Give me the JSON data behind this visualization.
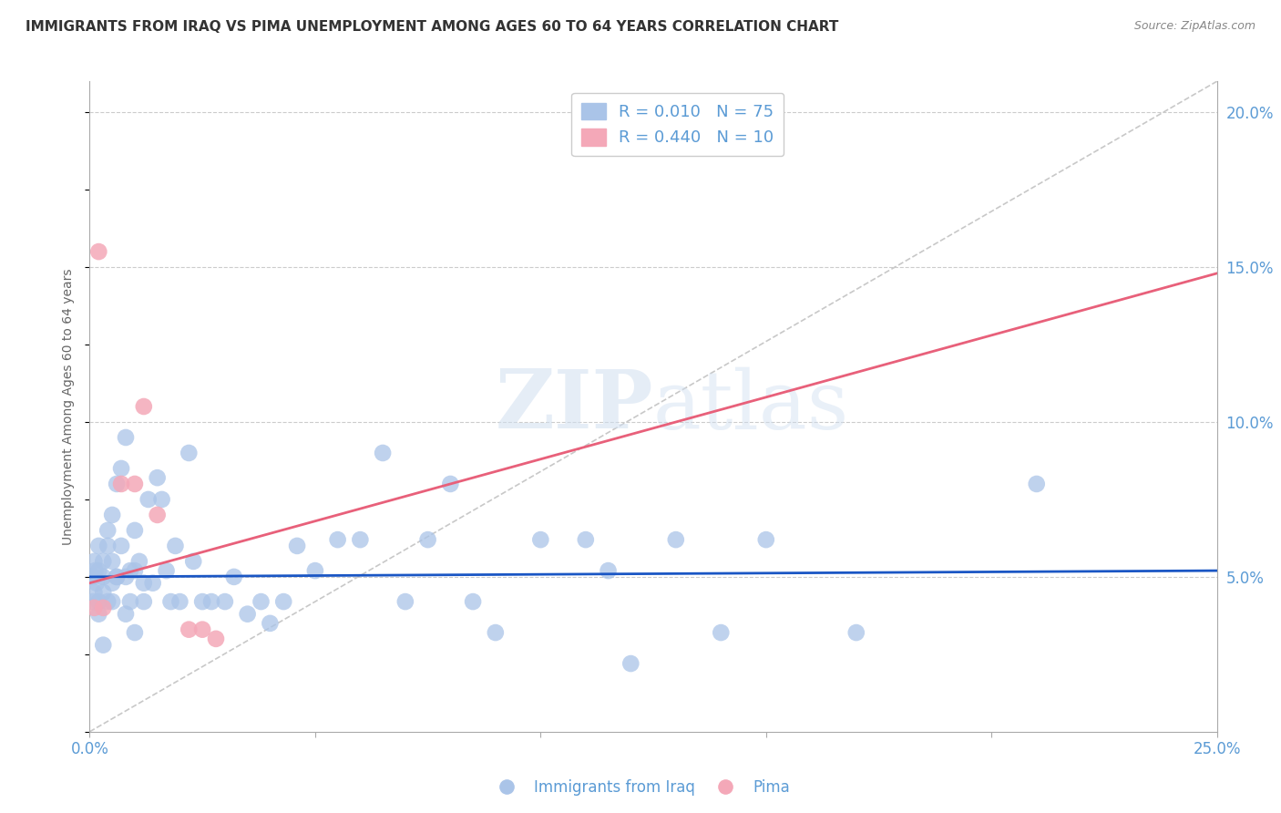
{
  "title": "IMMIGRANTS FROM IRAQ VS PIMA UNEMPLOYMENT AMONG AGES 60 TO 64 YEARS CORRELATION CHART",
  "source": "Source: ZipAtlas.com",
  "ylabel": "Unemployment Among Ages 60 to 64 years",
  "xlim": [
    0.0,
    0.25
  ],
  "ylim": [
    0.0,
    0.21
  ],
  "xticks": [
    0.0,
    0.05,
    0.1,
    0.15,
    0.2,
    0.25
  ],
  "xtick_labels": [
    "0.0%",
    "",
    "",
    "",
    "",
    "25.0%"
  ],
  "yticks_right": [
    0.0,
    0.05,
    0.1,
    0.15,
    0.2
  ],
  "ytick_labels_right": [
    "",
    "5.0%",
    "10.0%",
    "15.0%",
    "20.0%"
  ],
  "grid_color": "#cccccc",
  "background_color": "#ffffff",
  "axis_label_color": "#5b9bd5",
  "watermark_text": "ZIPatlas",
  "legend_r_blue": "0.010",
  "legend_n_blue": "75",
  "legend_r_pink": "0.440",
  "legend_n_pink": "10",
  "blue_scatter_x": [
    0.0005,
    0.001,
    0.001,
    0.001,
    0.0015,
    0.002,
    0.002,
    0.002,
    0.003,
    0.003,
    0.003,
    0.004,
    0.004,
    0.005,
    0.005,
    0.005,
    0.006,
    0.006,
    0.007,
    0.007,
    0.008,
    0.008,
    0.009,
    0.009,
    0.01,
    0.01,
    0.011,
    0.012,
    0.013,
    0.014,
    0.015,
    0.016,
    0.017,
    0.018,
    0.019,
    0.02,
    0.022,
    0.023,
    0.025,
    0.027,
    0.03,
    0.032,
    0.035,
    0.038,
    0.04,
    0.043,
    0.046,
    0.05,
    0.055,
    0.06,
    0.065,
    0.07,
    0.075,
    0.08,
    0.085,
    0.09,
    0.1,
    0.11,
    0.115,
    0.12,
    0.13,
    0.14,
    0.15,
    0.17,
    0.21,
    0.0008,
    0.0012,
    0.002,
    0.003,
    0.004,
    0.005,
    0.006,
    0.008,
    0.01,
    0.012
  ],
  "blue_scatter_y": [
    0.05,
    0.05,
    0.045,
    0.055,
    0.048,
    0.052,
    0.042,
    0.06,
    0.05,
    0.055,
    0.045,
    0.065,
    0.06,
    0.07,
    0.055,
    0.048,
    0.08,
    0.05,
    0.085,
    0.06,
    0.095,
    0.05,
    0.052,
    0.042,
    0.065,
    0.052,
    0.055,
    0.048,
    0.075,
    0.048,
    0.082,
    0.075,
    0.052,
    0.042,
    0.06,
    0.042,
    0.09,
    0.055,
    0.042,
    0.042,
    0.042,
    0.05,
    0.038,
    0.042,
    0.035,
    0.042,
    0.06,
    0.052,
    0.062,
    0.062,
    0.09,
    0.042,
    0.062,
    0.08,
    0.042,
    0.032,
    0.062,
    0.062,
    0.052,
    0.022,
    0.062,
    0.032,
    0.062,
    0.032,
    0.08,
    0.042,
    0.052,
    0.038,
    0.028,
    0.042,
    0.042,
    0.05,
    0.038,
    0.032,
    0.042
  ],
  "pink_scatter_x": [
    0.001,
    0.002,
    0.003,
    0.007,
    0.01,
    0.012,
    0.015,
    0.022,
    0.025,
    0.028
  ],
  "pink_scatter_y": [
    0.04,
    0.155,
    0.04,
    0.08,
    0.08,
    0.105,
    0.07,
    0.033,
    0.033,
    0.03
  ],
  "blue_line_x": [
    0.0,
    0.25
  ],
  "blue_line_y": [
    0.05,
    0.052
  ],
  "pink_line_x": [
    0.0,
    0.25
  ],
  "pink_line_y": [
    0.048,
    0.148
  ],
  "diag_line_x": [
    0.0,
    0.25
  ],
  "diag_line_y": [
    0.0,
    0.21
  ],
  "blue_color": "#aac4e8",
  "pink_color": "#f4a8b8",
  "blue_line_color": "#1a56c4",
  "pink_line_color": "#e8607a",
  "diag_line_color": "#c8c8c8"
}
